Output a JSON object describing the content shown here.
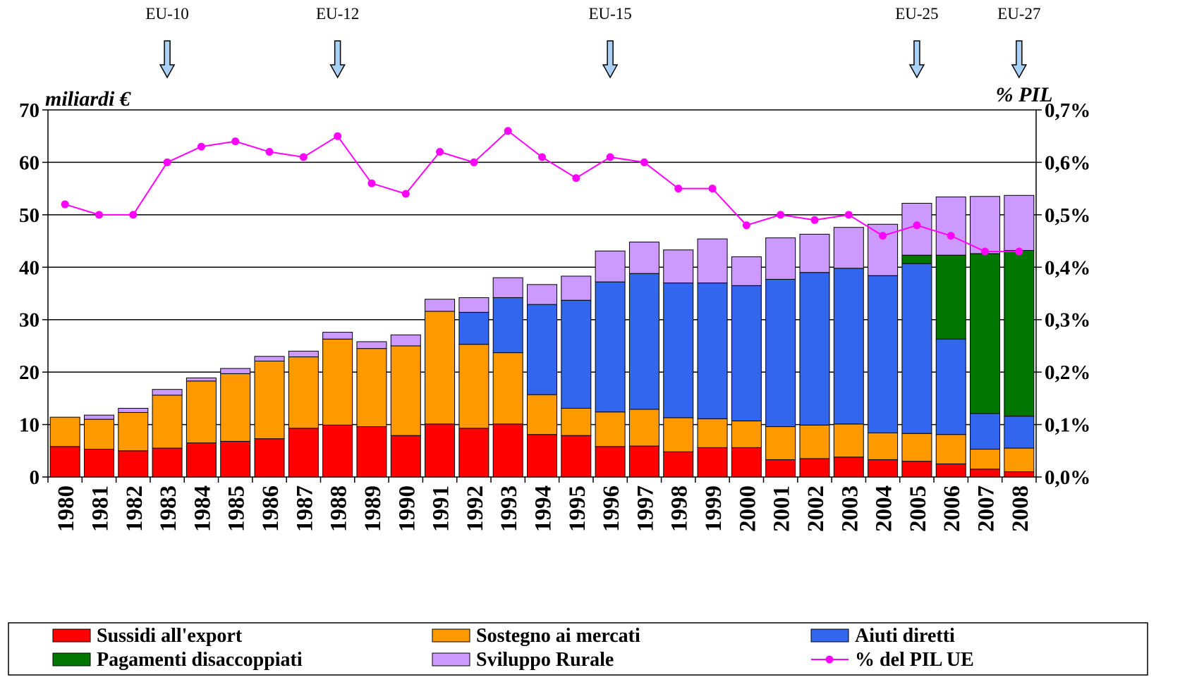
{
  "chart_data": {
    "type": "bar",
    "stacked": true,
    "y_axis_left": {
      "unit_label": "miliardi €",
      "min": 0,
      "max": 70,
      "ticks": [
        "0",
        "10",
        "20",
        "30",
        "40",
        "50",
        "60",
        "70"
      ]
    },
    "y_axis_right": {
      "unit_label": "% PIL",
      "min": 0,
      "max": 0.7,
      "ticks": [
        "0,0%",
        "0,1%",
        "0,2%",
        "0,3%",
        "0,4%",
        "0,5%",
        "0,6%",
        "0,7%"
      ]
    },
    "grid": true,
    "legend_position": "bottom",
    "categories": [
      "1980",
      "1981",
      "1982",
      "1983",
      "1984",
      "1985",
      "1986",
      "1987",
      "1988",
      "1989",
      "1990",
      "1991",
      "1992",
      "1993",
      "1994",
      "1995",
      "1996",
      "1997",
      "1998",
      "1999",
      "2000",
      "2001",
      "2002",
      "2003",
      "2004",
      "2005",
      "2006",
      "2007",
      "2008"
    ],
    "series": [
      {
        "name": "Sussidi all'export",
        "color": "#ff0000",
        "values": [
          5.8,
          5.3,
          5.0,
          5.5,
          6.5,
          6.8,
          7.3,
          9.3,
          9.9,
          9.6,
          7.9,
          10.1,
          9.3,
          10.1,
          8.1,
          7.9,
          5.8,
          5.9,
          4.8,
          5.6,
          5.6,
          3.3,
          3.5,
          3.8,
          3.3,
          3.0,
          2.5,
          1.5,
          1.0
        ]
      },
      {
        "name": "Sostegno ai mercati",
        "color": "#ff9900",
        "values": [
          5.6,
          5.7,
          7.3,
          10.1,
          11.8,
          12.9,
          14.8,
          13.6,
          16.4,
          14.9,
          17.1,
          21.5,
          16.0,
          13.6,
          7.6,
          5.2,
          6.6,
          7.0,
          6.5,
          5.5,
          5.1,
          6.3,
          6.4,
          6.3,
          5.1,
          5.3,
          5.6,
          3.8,
          4.5
        ]
      },
      {
        "name": "Aiuti diretti",
        "color": "#3366ee",
        "values": [
          0,
          0,
          0,
          0,
          0,
          0,
          0,
          0,
          0,
          0,
          0,
          0,
          6.1,
          10.5,
          17.2,
          20.6,
          24.8,
          25.9,
          25.7,
          25.9,
          25.8,
          28.1,
          29.1,
          29.7,
          30.0,
          32.4,
          18.2,
          6.8,
          6.1
        ]
      },
      {
        "name": "Pagamenti disaccoppiati",
        "color": "#007700",
        "values": [
          0,
          0,
          0,
          0,
          0,
          0,
          0,
          0,
          0,
          0,
          0,
          0,
          0,
          0,
          0,
          0,
          0,
          0,
          0,
          0,
          0,
          0,
          0,
          0,
          0,
          1.6,
          16.0,
          30.5,
          31.6
        ]
      },
      {
        "name": "Sviluppo Rurale",
        "color": "#cc99ff",
        "values": [
          0,
          0.8,
          0.8,
          1.1,
          0.6,
          1.0,
          0.9,
          1.1,
          1.3,
          1.3,
          2.1,
          2.3,
          2.8,
          3.8,
          3.8,
          4.6,
          5.9,
          6.0,
          6.3,
          8.4,
          5.5,
          7.9,
          7.3,
          7.8,
          9.8,
          9.9,
          11.1,
          10.9,
          10.5
        ]
      }
    ],
    "line_series": {
      "name": "% del PIL UE",
      "color": "#ff00ff",
      "axis": "right",
      "values": [
        0.52,
        0.5,
        0.5,
        0.6,
        0.63,
        0.64,
        0.62,
        0.61,
        0.65,
        0.56,
        0.54,
        0.62,
        0.6,
        0.66,
        0.61,
        0.57,
        0.61,
        0.6,
        0.55,
        0.55,
        0.48,
        0.5,
        0.49,
        0.5,
        0.46,
        0.48,
        0.46,
        0.43,
        0.43
      ]
    },
    "annotations": [
      {
        "label": "EU-10",
        "year": "1983",
        "marker": "down-arrow-icon"
      },
      {
        "label": "EU-12",
        "year": "1988",
        "marker": "down-arrow-icon"
      },
      {
        "label": "EU-15",
        "year": "1996",
        "marker": "down-arrow-icon"
      },
      {
        "label": "EU-25",
        "year": "2005",
        "marker": "down-arrow-icon"
      },
      {
        "label": "EU-27",
        "year": "2008",
        "marker": "down-arrow-icon"
      }
    ]
  }
}
